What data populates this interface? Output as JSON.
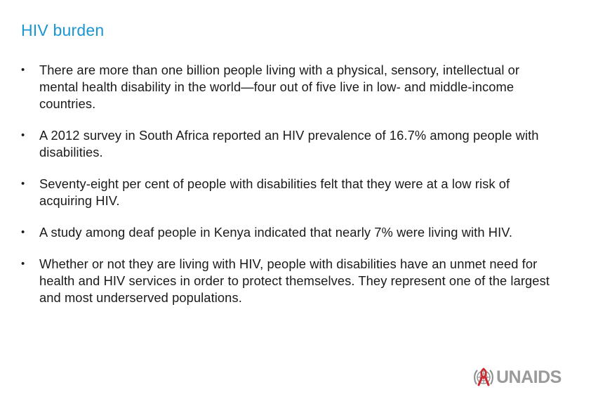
{
  "slide": {
    "title": "HIV burden",
    "bullets": [
      {
        "marker": "•",
        "text": "There are more than one billion people living with a physical, sensory, intellectual or mental health disability in the world—four out of five live in low- and middle-income countries."
      },
      {
        "marker": "•",
        "text": "A 2012 survey in South Africa reported an HIV prevalence of 16.7% among people with disabilities."
      },
      {
        "marker": "•",
        "text": "Seventy-eight per cent of people with disabilities felt that they were at a low risk of acquiring HIV."
      },
      {
        "marker": "•",
        "text": "A study among deaf people in Kenya indicated that nearly 7% were living with HIV."
      },
      {
        "marker": "•",
        "text": "Whether or not they are living with HIV, people with disabilities have an unmet need for health and HIV services in order to protect themselves. They represent one of the largest and most underserved populations."
      }
    ]
  },
  "logo": {
    "text": "UNAIDS",
    "icon": "un-emblem-red-ribbon-icon",
    "colors": {
      "ribbon": "#d0262d",
      "text": "#9a9a9a",
      "emblem": "#8a8a8a"
    }
  },
  "colors": {
    "title": "#1a96d2",
    "body_text": "#1a1a1a"
  }
}
